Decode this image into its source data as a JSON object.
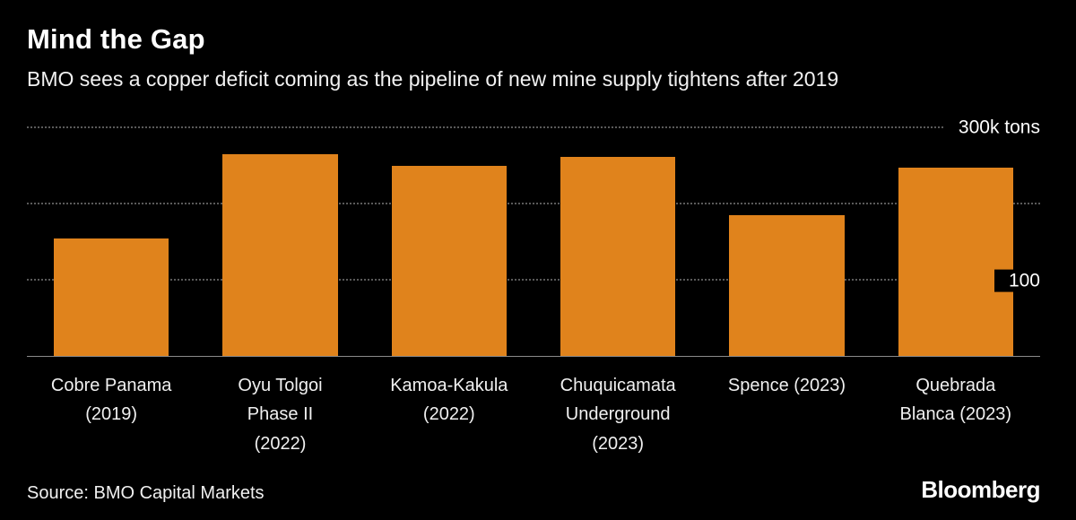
{
  "header": {
    "title": "Mind the Gap",
    "subtitle": "BMO sees a copper deficit coming as the pipeline of new mine supply tightens after 2019"
  },
  "chart_data": {
    "type": "bar",
    "title": "Mind the Gap",
    "subtitle": "BMO sees a copper deficit coming as the pipeline of new mine supply tightens after 2019",
    "unit": "k tons",
    "categories": [
      "Cobre Panama (2019)",
      "Oyu Tolgoi Phase II (2022)",
      "Kamoa-Kakula (2022)",
      "Chuquicamata Underground (2023)",
      "Spence (2023)",
      "Quebrada Blanca (2023)"
    ],
    "category_lines": [
      [
        "Cobre Panama",
        "(2019)"
      ],
      [
        "Oyu Tolgoi",
        "Phase II",
        "(2022)"
      ],
      [
        "Kamoa-Kakula",
        "(2022)"
      ],
      [
        "Chuquicamata",
        "Underground",
        "(2023)"
      ],
      [
        "Spence (2023)"
      ],
      [
        "Quebrada",
        "Blanca (2023)"
      ]
    ],
    "values": [
      155,
      265,
      250,
      262,
      185,
      248
    ],
    "ylim": [
      0,
      310
    ],
    "gridlines": [
      {
        "value": 100,
        "label": "100"
      },
      {
        "value": 200,
        "label": ""
      },
      {
        "value": 300,
        "label": "300k tons"
      }
    ],
    "bar_color": "#E0831C",
    "grid_color": "#5a5a5a",
    "background_color": "#000000",
    "legend_position": "none",
    "xlabel": "",
    "ylabel": "k tons"
  },
  "footer": {
    "source": "Source: BMO Capital Markets",
    "brand": "Bloomberg"
  }
}
